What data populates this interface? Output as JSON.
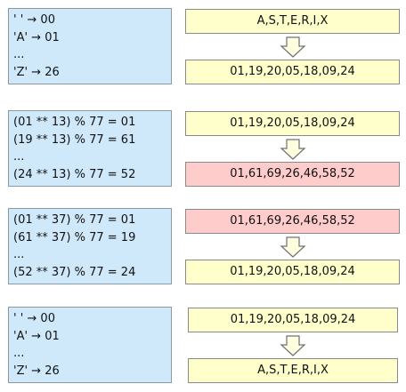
{
  "panels": [
    {
      "left": [
        "' ' → 00",
        "'A' → 01",
        "...",
        "'Z' → 26"
      ],
      "top": "A,S,T,E,R,I,X",
      "bottom": "01,19,20,05,18,09,24"
    },
    {
      "left": [
        "(01 ** 13) % 77 = 01",
        "(19 ** 13) % 77 = 61",
        "...",
        "(24 ** 13) % 77 = 52"
      ],
      "top": "01,19,20,05,18,09,24",
      "bottom": "01,61,69,26,46,58,52"
    },
    {
      "left": [
        "(01 ** 37) % 77 = 01",
        "(61 ** 37) % 77 = 19",
        "...",
        "(52 ** 37) % 77 = 24"
      ],
      "top": "01,61,69,26,46,58,52",
      "bottom": "01,19,20,05,18,09,24"
    },
    {
      "left": [
        "' ' → 00",
        "'A' → 01",
        "...",
        "'Z' → 26"
      ],
      "top": "01,19,20,05,18,09,24",
      "bottom": "A,S,T,E,R,I,X"
    }
  ]
}
